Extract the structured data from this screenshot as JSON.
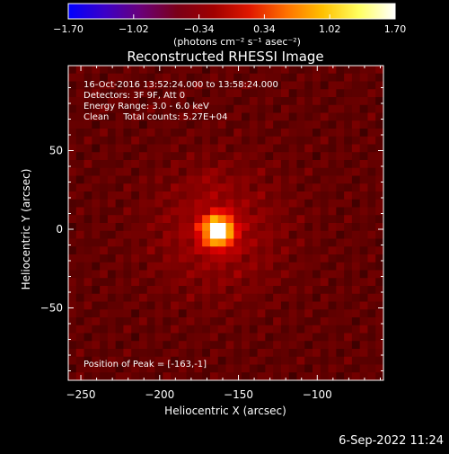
{
  "colorbar": {
    "ticks": [
      "-1.70",
      "-1.02",
      "-0.34",
      "0.34",
      "1.02",
      "1.70"
    ],
    "units_label": "(photons cm⁻² s⁻¹ asec⁻²)",
    "stops": [
      "#0000ff",
      "#3b00c8",
      "#6a0078",
      "#7a0018",
      "#a00000",
      "#e01800",
      "#ff7000",
      "#ffc000",
      "#ffff60",
      "#ffffff"
    ]
  },
  "chart_data": {
    "type": "heatmap",
    "title": "Reconstructed RHESSI Image",
    "xlabel": "Heliocentric X (arcsec)",
    "ylabel": "Heliocentric Y (arcsec)",
    "xlim": [
      -258,
      -58
    ],
    "ylim": [
      -96,
      104
    ],
    "x_ticks": [
      -250,
      -200,
      -150,
      -100
    ],
    "x_tick_labels": [
      "−250",
      "−200",
      "−150",
      "−100"
    ],
    "y_ticks": [
      50,
      0,
      -50
    ],
    "y_tick_labels": [
      "50",
      "0",
      "−50"
    ],
    "peak": {
      "x": -163,
      "y": -1
    },
    "value_range": [
      -1.7,
      1.7
    ],
    "annotations": [
      "16-Oct-2016 13:52:24.000 to 13:58:24.000",
      "Detectors: 3F 9F, Att 0",
      "Energy Range: 3.0 - 6.0 keV",
      "Clean     Total counts: 5.27E+04"
    ],
    "peak_label": "Position of Peak = [-163,-1]"
  },
  "footer": {
    "timestamp": "6-Sep-2022 11:24"
  }
}
